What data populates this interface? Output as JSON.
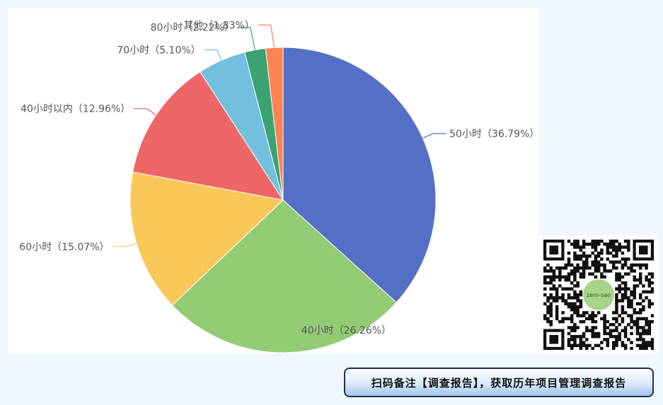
{
  "chart_data": {
    "type": "pie",
    "title": "",
    "start_angle_deg": 90,
    "direction": "clockwise",
    "slices": [
      {
        "label": "50小时（36.79%）",
        "value": 36.79,
        "color": "#5470c6"
      },
      {
        "label": "40小时（26.26%）",
        "value": 26.26,
        "color": "#91cc75"
      },
      {
        "label": "60小时（15.07%）",
        "value": 15.07,
        "color": "#fac858"
      },
      {
        "label": "40小时以内（12.96%）",
        "value": 12.96,
        "color": "#ee6666"
      },
      {
        "label": "70小时（5.10%）",
        "value": 5.1,
        "color": "#73c0de"
      },
      {
        "label": "80小时（2.22%）",
        "value": 2.22,
        "color": "#3ba272"
      },
      {
        "label": "其他（1.83%）",
        "value": 1.83,
        "color": "#fc8452"
      }
    ]
  },
  "qr": {
    "logo_text": "zero-sao",
    "colors": {
      "module": "#111111",
      "logo": "#a7d38a"
    }
  },
  "banner": {
    "text": "扫码备注【调查报告】，获取历年项目管理调查报告"
  }
}
